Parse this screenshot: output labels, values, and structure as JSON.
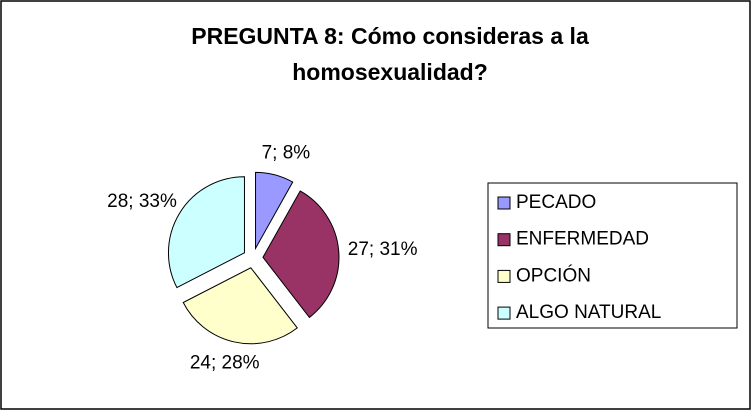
{
  "chart_data": {
    "type": "pie",
    "title": "PREGUNTA 8: Cómo consideras a la homosexualidad?",
    "categories": [
      "PECADO",
      "ENFERMEDAD",
      "OPCIÓN",
      "ALGO NATURAL"
    ],
    "values": [
      7,
      27,
      24,
      28
    ],
    "value_labels": [
      "7; 8%",
      "27; 31%",
      "24; 28%",
      "28; 33%"
    ],
    "colors": [
      "#9999ff",
      "#993366",
      "#ffffcc",
      "#ccffff"
    ],
    "legend": "right"
  }
}
